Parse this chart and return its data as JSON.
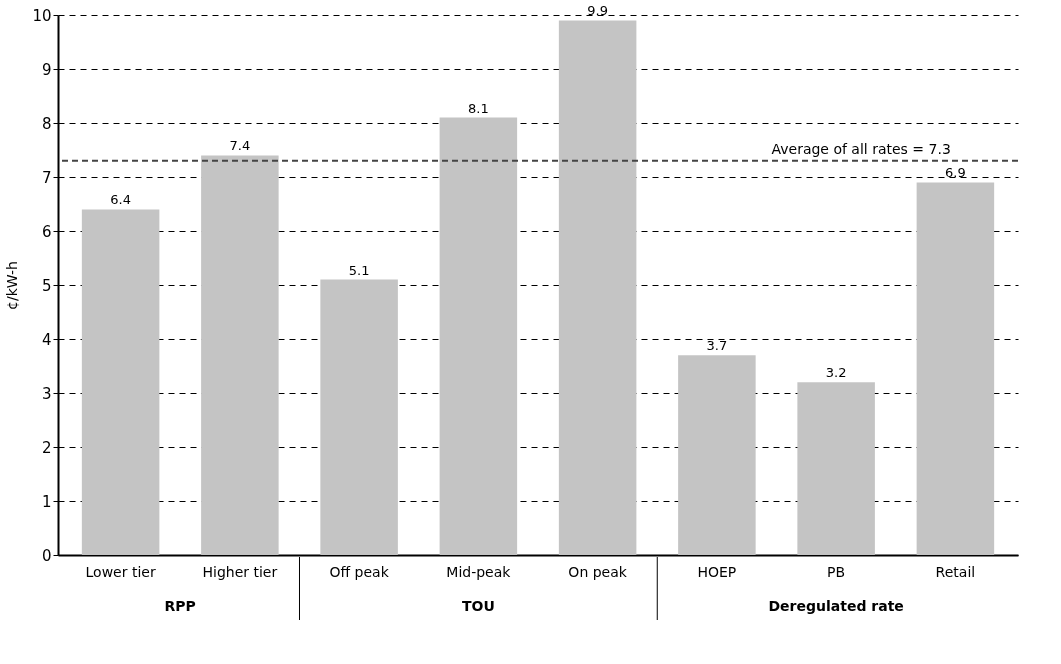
{
  "chart_data": {
    "type": "bar",
    "ylabel": "¢/kW-h",
    "categories": [
      "Lower tier",
      "Higher tier",
      "Off peak",
      "Mid-peak",
      "On peak",
      "HOEP",
      "PB",
      "Retail"
    ],
    "values": [
      6.4,
      7.4,
      5.1,
      8.1,
      9.9,
      3.7,
      3.2,
      6.9
    ],
    "color": "#c4c4c4",
    "ylim": [
      0,
      10
    ],
    "yticks": [
      0,
      1,
      2,
      3,
      4,
      5,
      6,
      7,
      8,
      9,
      10
    ],
    "grid": "y",
    "data_labels": true,
    "ref_lines": [
      {
        "axis": "y",
        "value": 7.3,
        "label": "Average of all rates = 7.3",
        "color": "#444444",
        "line_style": "dashed"
      }
    ],
    "annotations": [
      "RPP",
      "TOU",
      "Deregulated rate"
    ]
  }
}
